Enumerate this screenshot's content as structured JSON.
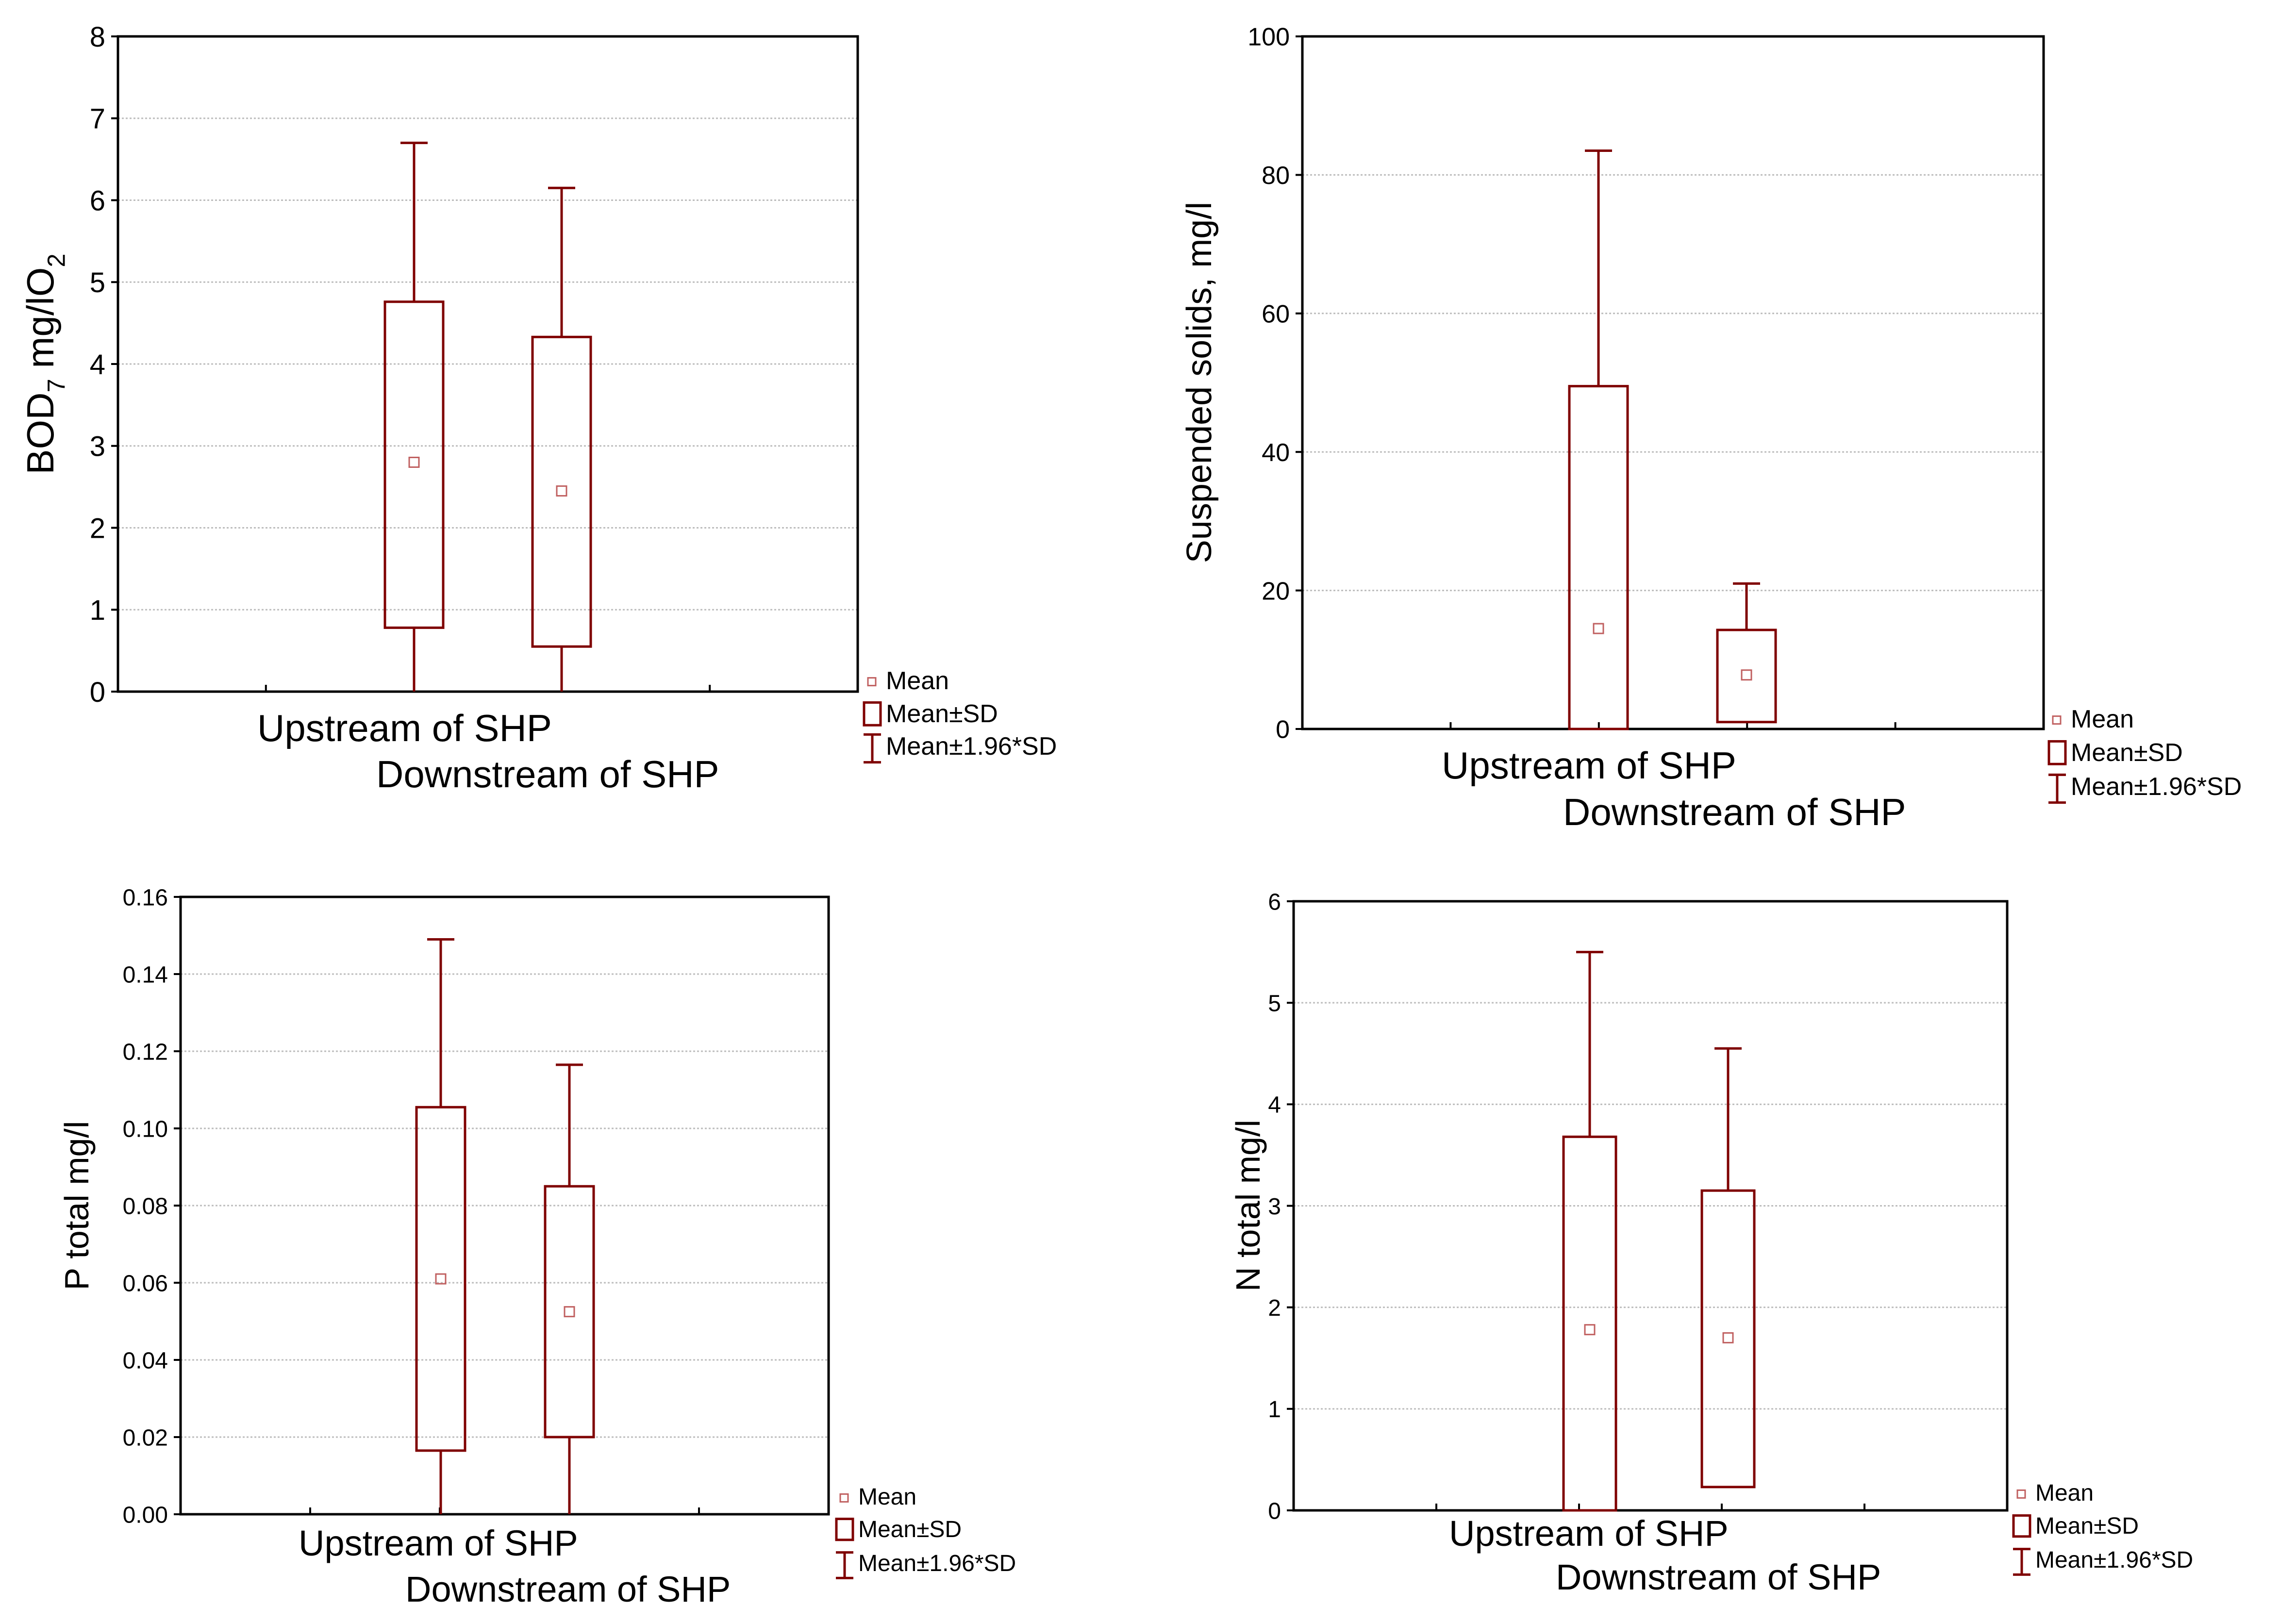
{
  "chart_data": [
    {
      "type": "box",
      "ylabel": "BOD",
      "ylabel_sub": "7",
      "ylabel_rest": " mg/lO",
      "ylabel_sub2": "2",
      "ylim": [
        0,
        8
      ],
      "yticks": [
        "0",
        "1",
        "2",
        "3",
        "4",
        "5",
        "6",
        "7",
        "8"
      ],
      "categories": [
        "Upstream of SHP",
        "Downstream of SHP"
      ],
      "series": [
        {
          "name": "Upstream of SHP",
          "mean": 2.8,
          "sd_low": 0.78,
          "sd_high": 4.76,
          "ci_low": 0.0,
          "ci_high": 6.7
        },
        {
          "name": "Downstream of SHP",
          "mean": 2.45,
          "sd_low": 0.55,
          "sd_high": 4.33,
          "ci_low": 0.0,
          "ci_high": 6.15
        }
      ],
      "legend": [
        "Mean",
        "Mean±SD",
        "Mean±1.96*SD"
      ]
    },
    {
      "type": "box",
      "ylabel": "Suspended solids, mg/l",
      "ylim": [
        0,
        100
      ],
      "yticks": [
        "0",
        "20",
        "40",
        "60",
        "80",
        "100"
      ],
      "categories": [
        "Upstream of SHP",
        "Downstream of SHP"
      ],
      "series": [
        {
          "name": "Upstream of SHP",
          "mean": 14.5,
          "sd_low": 0.0,
          "sd_high": 49.5,
          "ci_low": 0.0,
          "ci_high": 83.5
        },
        {
          "name": "Downstream of SHP",
          "mean": 7.8,
          "sd_low": 1.0,
          "sd_high": 14.3,
          "ci_low": 1.0,
          "ci_high": 21.0
        }
      ],
      "legend": [
        "Mean",
        "Mean±SD",
        "Mean±1.96*SD"
      ]
    },
    {
      "type": "box",
      "ylabel": "P total mg/l",
      "ylim": [
        0,
        0.16
      ],
      "yticks": [
        "0.00",
        "0.02",
        "0.04",
        "0.06",
        "0.08",
        "0.10",
        "0.12",
        "0.14",
        "0.16"
      ],
      "categories": [
        "Upstream of SHP",
        "Downstream of SHP"
      ],
      "series": [
        {
          "name": "Upstream of SHP",
          "mean": 0.061,
          "sd_low": 0.0165,
          "sd_high": 0.1055,
          "ci_low": 0.0,
          "ci_high": 0.149
        },
        {
          "name": "Downstream of SHP",
          "mean": 0.0525,
          "sd_low": 0.02,
          "sd_high": 0.085,
          "ci_low": 0.0,
          "ci_high": 0.1165
        }
      ],
      "legend": [
        "Mean",
        "Mean±SD",
        "Mean±1.96*SD"
      ]
    },
    {
      "type": "box",
      "ylabel": "N total mg/l",
      "ylim": [
        0,
        6
      ],
      "yticks": [
        "0",
        "1",
        "2",
        "3",
        "4",
        "5",
        "6"
      ],
      "categories": [
        "Upstream of SHP",
        "Downstream of SHP"
      ],
      "series": [
        {
          "name": "Upstream of SHP",
          "mean": 1.78,
          "sd_low": 0.0,
          "sd_high": 3.68,
          "ci_low": 0.0,
          "ci_high": 5.5
        },
        {
          "name": "Downstream of SHP",
          "mean": 1.7,
          "sd_low": 0.23,
          "sd_high": 3.15,
          "ci_low": 0.23,
          "ci_high": 4.55
        }
      ],
      "legend": [
        "Mean",
        "Mean±SD",
        "Mean±1.96*SD"
      ]
    }
  ],
  "colors": {
    "box": "#7f0000",
    "mean": "#c06060",
    "grid": "#bdbdbd"
  }
}
